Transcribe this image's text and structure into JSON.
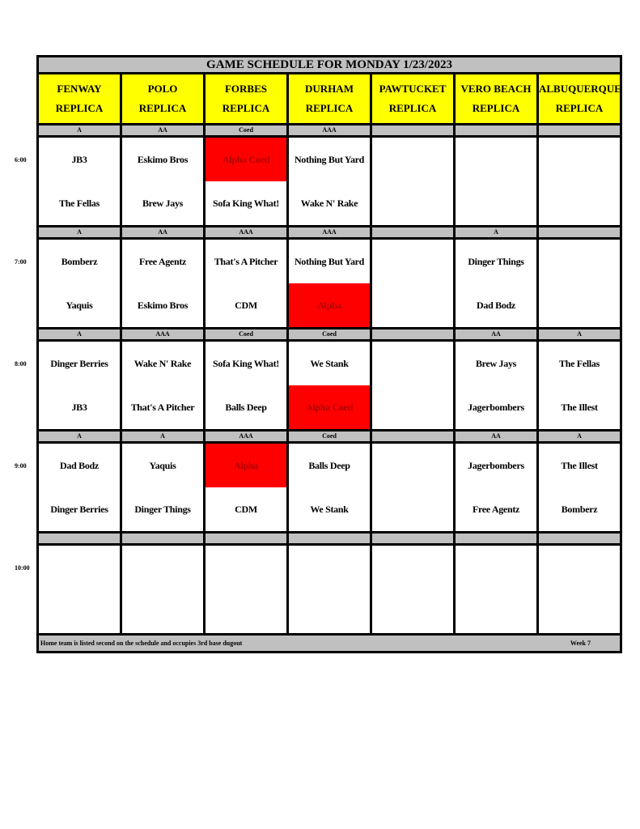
{
  "title": "GAME SCHEDULE FOR MONDAY 1/23/2023",
  "fields": [
    {
      "name": "FENWAY",
      "sub": "REPLICA"
    },
    {
      "name": "POLO",
      "sub": "REPLICA"
    },
    {
      "name": "FORBES",
      "sub": "REPLICA"
    },
    {
      "name": "DURHAM",
      "sub": "REPLICA"
    },
    {
      "name": "PAWTUCKET",
      "sub": "REPLICA"
    },
    {
      "name": "VERO BEACH",
      "sub": "REPLICA"
    },
    {
      "name": "ALBUQUERQUE",
      "sub": "REPLICA"
    }
  ],
  "colors": {
    "header": "#ffff00",
    "divider": "#c0c0c0",
    "highlight": "#ff0000"
  },
  "slots": [
    {
      "time": "6:00",
      "divisions": [
        "A",
        "AA",
        "Coed",
        "AAA",
        "",
        "",
        ""
      ],
      "games": [
        {
          "away": "JB3",
          "home": "The Fellas"
        },
        {
          "away": "Eskimo Bros",
          "home": "Brew Jays"
        },
        {
          "away": "Alpha Coed",
          "home": "Sofa King What!",
          "away_highlight": true
        },
        {
          "away": "Nothing But Yard",
          "home": "Wake N' Rake"
        },
        {
          "away": "",
          "home": ""
        },
        {
          "away": "",
          "home": ""
        },
        {
          "away": "",
          "home": ""
        }
      ]
    },
    {
      "time": "7:00",
      "divisions": [
        "A",
        "AA",
        "AAA",
        "AAA",
        "",
        "A",
        ""
      ],
      "games": [
        {
          "away": "Bomberz",
          "home": "Yaquis"
        },
        {
          "away": "Free Agentz",
          "home": "Eskimo Bros"
        },
        {
          "away": "That's A Pitcher",
          "home": "CDM"
        },
        {
          "away": "Nothing But Yard",
          "home": "Alpha",
          "home_highlight": true
        },
        {
          "away": "",
          "home": ""
        },
        {
          "away": "Dinger Things",
          "home": "Dad Bodz"
        },
        {
          "away": "",
          "home": ""
        }
      ]
    },
    {
      "time": "8:00",
      "divisions": [
        "A",
        "AAA",
        "Coed",
        "Coed",
        "",
        "AA",
        "A"
      ],
      "games": [
        {
          "away": "Dinger Berries",
          "home": "JB3"
        },
        {
          "away": "Wake N' Rake",
          "home": "That's A Pitcher"
        },
        {
          "away": "Sofa King What!",
          "home": "Balls Deep"
        },
        {
          "away": "We Stank",
          "home": "Alpha Coed",
          "home_highlight": true
        },
        {
          "away": "",
          "home": ""
        },
        {
          "away": "Brew Jays",
          "home": "Jagerbombers"
        },
        {
          "away": "The Fellas",
          "home": "The Illest"
        }
      ]
    },
    {
      "time": "9:00",
      "divisions": [
        "A",
        "A",
        "AAA",
        "Coed",
        "",
        "AA",
        "A"
      ],
      "games": [
        {
          "away": "Dad Bodz",
          "home": "Dinger Berries"
        },
        {
          "away": "Yaquis",
          "home": "Dinger Things"
        },
        {
          "away": "Alpha",
          "home": "CDM",
          "away_highlight": true
        },
        {
          "away": "Balls Deep",
          "home": "We Stank"
        },
        {
          "away": "",
          "home": ""
        },
        {
          "away": "Jagerbombers",
          "home": "Free Agentz"
        },
        {
          "away": "The Illest",
          "home": "Bomberz"
        }
      ]
    },
    {
      "time": "10:00",
      "divisions": [
        "",
        "",
        "",
        "",
        "",
        "",
        ""
      ],
      "games": [
        {
          "away": "",
          "home": ""
        },
        {
          "away": "",
          "home": ""
        },
        {
          "away": "",
          "home": ""
        },
        {
          "away": "",
          "home": ""
        },
        {
          "away": "",
          "home": ""
        },
        {
          "away": "",
          "home": ""
        },
        {
          "away": "",
          "home": ""
        }
      ]
    }
  ],
  "footer": {
    "note": "Home team is listed second on the schedule and occupies 3rd base dugout",
    "week": "Week 7"
  }
}
